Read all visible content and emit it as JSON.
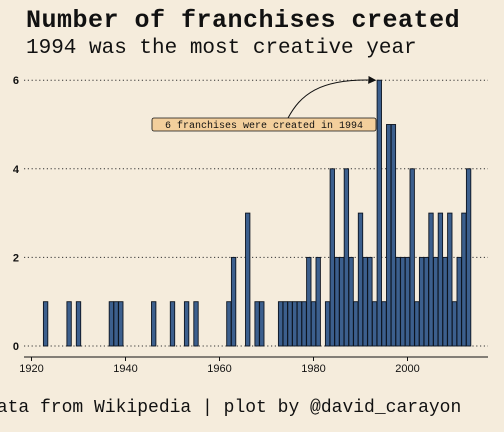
{
  "title": "Number of franchises created",
  "subtitle": "1994 was the most creative year",
  "caption": "Data from Wikipedia | plot by @david_carayon",
  "colors": {
    "background": "#f5ecdc",
    "bar_fill": "#3c5f8d",
    "bar_stroke": "#0d1420",
    "annotation_fill": "#f3cf9c",
    "gridline": "#333333"
  },
  "chart_data": {
    "type": "bar",
    "title": "Number of franchises created",
    "subtitle": "1994 was the most creative year",
    "xlabel": "",
    "ylabel": "",
    "xlim": [
      1920,
      2016
    ],
    "ylim": [
      0,
      6
    ],
    "xticks": [
      1920,
      1940,
      1960,
      1980,
      2000
    ],
    "yticks": [
      0,
      2,
      4,
      6
    ],
    "grid": "horizontal dotted",
    "x": [
      1923,
      1928,
      1930,
      1937,
      1938,
      1939,
      1946,
      1950,
      1953,
      1955,
      1962,
      1963,
      1966,
      1968,
      1969,
      1973,
      1974,
      1975,
      1976,
      1977,
      1978,
      1979,
      1980,
      1981,
      1983,
      1984,
      1985,
      1986,
      1987,
      1988,
      1989,
      1990,
      1991,
      1992,
      1993,
      1994,
      1995,
      1996,
      1997,
      1998,
      1999,
      2000,
      2001,
      2002,
      2003,
      2004,
      2005,
      2006,
      2007,
      2008,
      2009,
      2010,
      2011,
      2012,
      2013
    ],
    "values": [
      1,
      1,
      1,
      1,
      1,
      1,
      1,
      1,
      1,
      1,
      1,
      2,
      3,
      1,
      1,
      1,
      1,
      1,
      1,
      1,
      1,
      2,
      1,
      2,
      1,
      4,
      2,
      2,
      4,
      2,
      1,
      3,
      2,
      2,
      1,
      6,
      1,
      5,
      5,
      2,
      2,
      2,
      4,
      1,
      2,
      2,
      3,
      2,
      3,
      2,
      3,
      1,
      2,
      3,
      4
    ],
    "annotation": {
      "text": "6 franchises were created in 1994",
      "target_x": 1994,
      "target_y": 6
    }
  }
}
